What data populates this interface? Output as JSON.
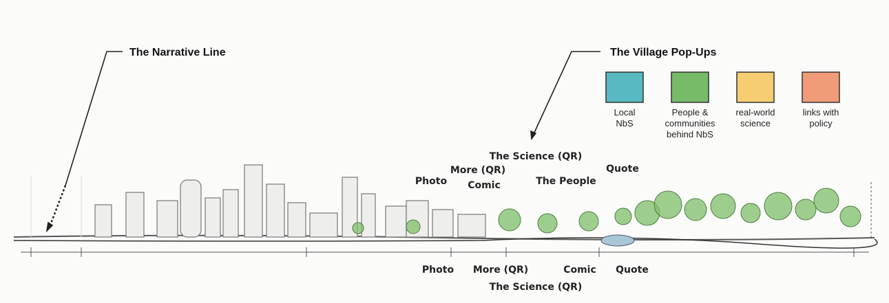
{
  "callouts": [
    {
      "label": "The Narrative Line"
    },
    {
      "label": "The Village Pop-Ups"
    }
  ],
  "legend": [
    {
      "lines": [
        "Local",
        "NbS"
      ],
      "color": "#3aaeb5"
    },
    {
      "lines": [
        "People &",
        "communities",
        "behind NbS"
      ],
      "color": "#5fae4e"
    },
    {
      "lines": [
        "real-world",
        "science"
      ],
      "color": "#f5c45a"
    },
    {
      "lines": [
        "links with",
        "policy"
      ],
      "color": "#ef8a62"
    }
  ],
  "upper_labels": [
    "The Science (QR)",
    "More (QR)",
    "Photo",
    "Comic",
    "The People",
    "Quote"
  ],
  "lower_labels": [
    "Photo",
    "More (QR)",
    "Comic",
    "Quote",
    "The Science (QR)"
  ]
}
